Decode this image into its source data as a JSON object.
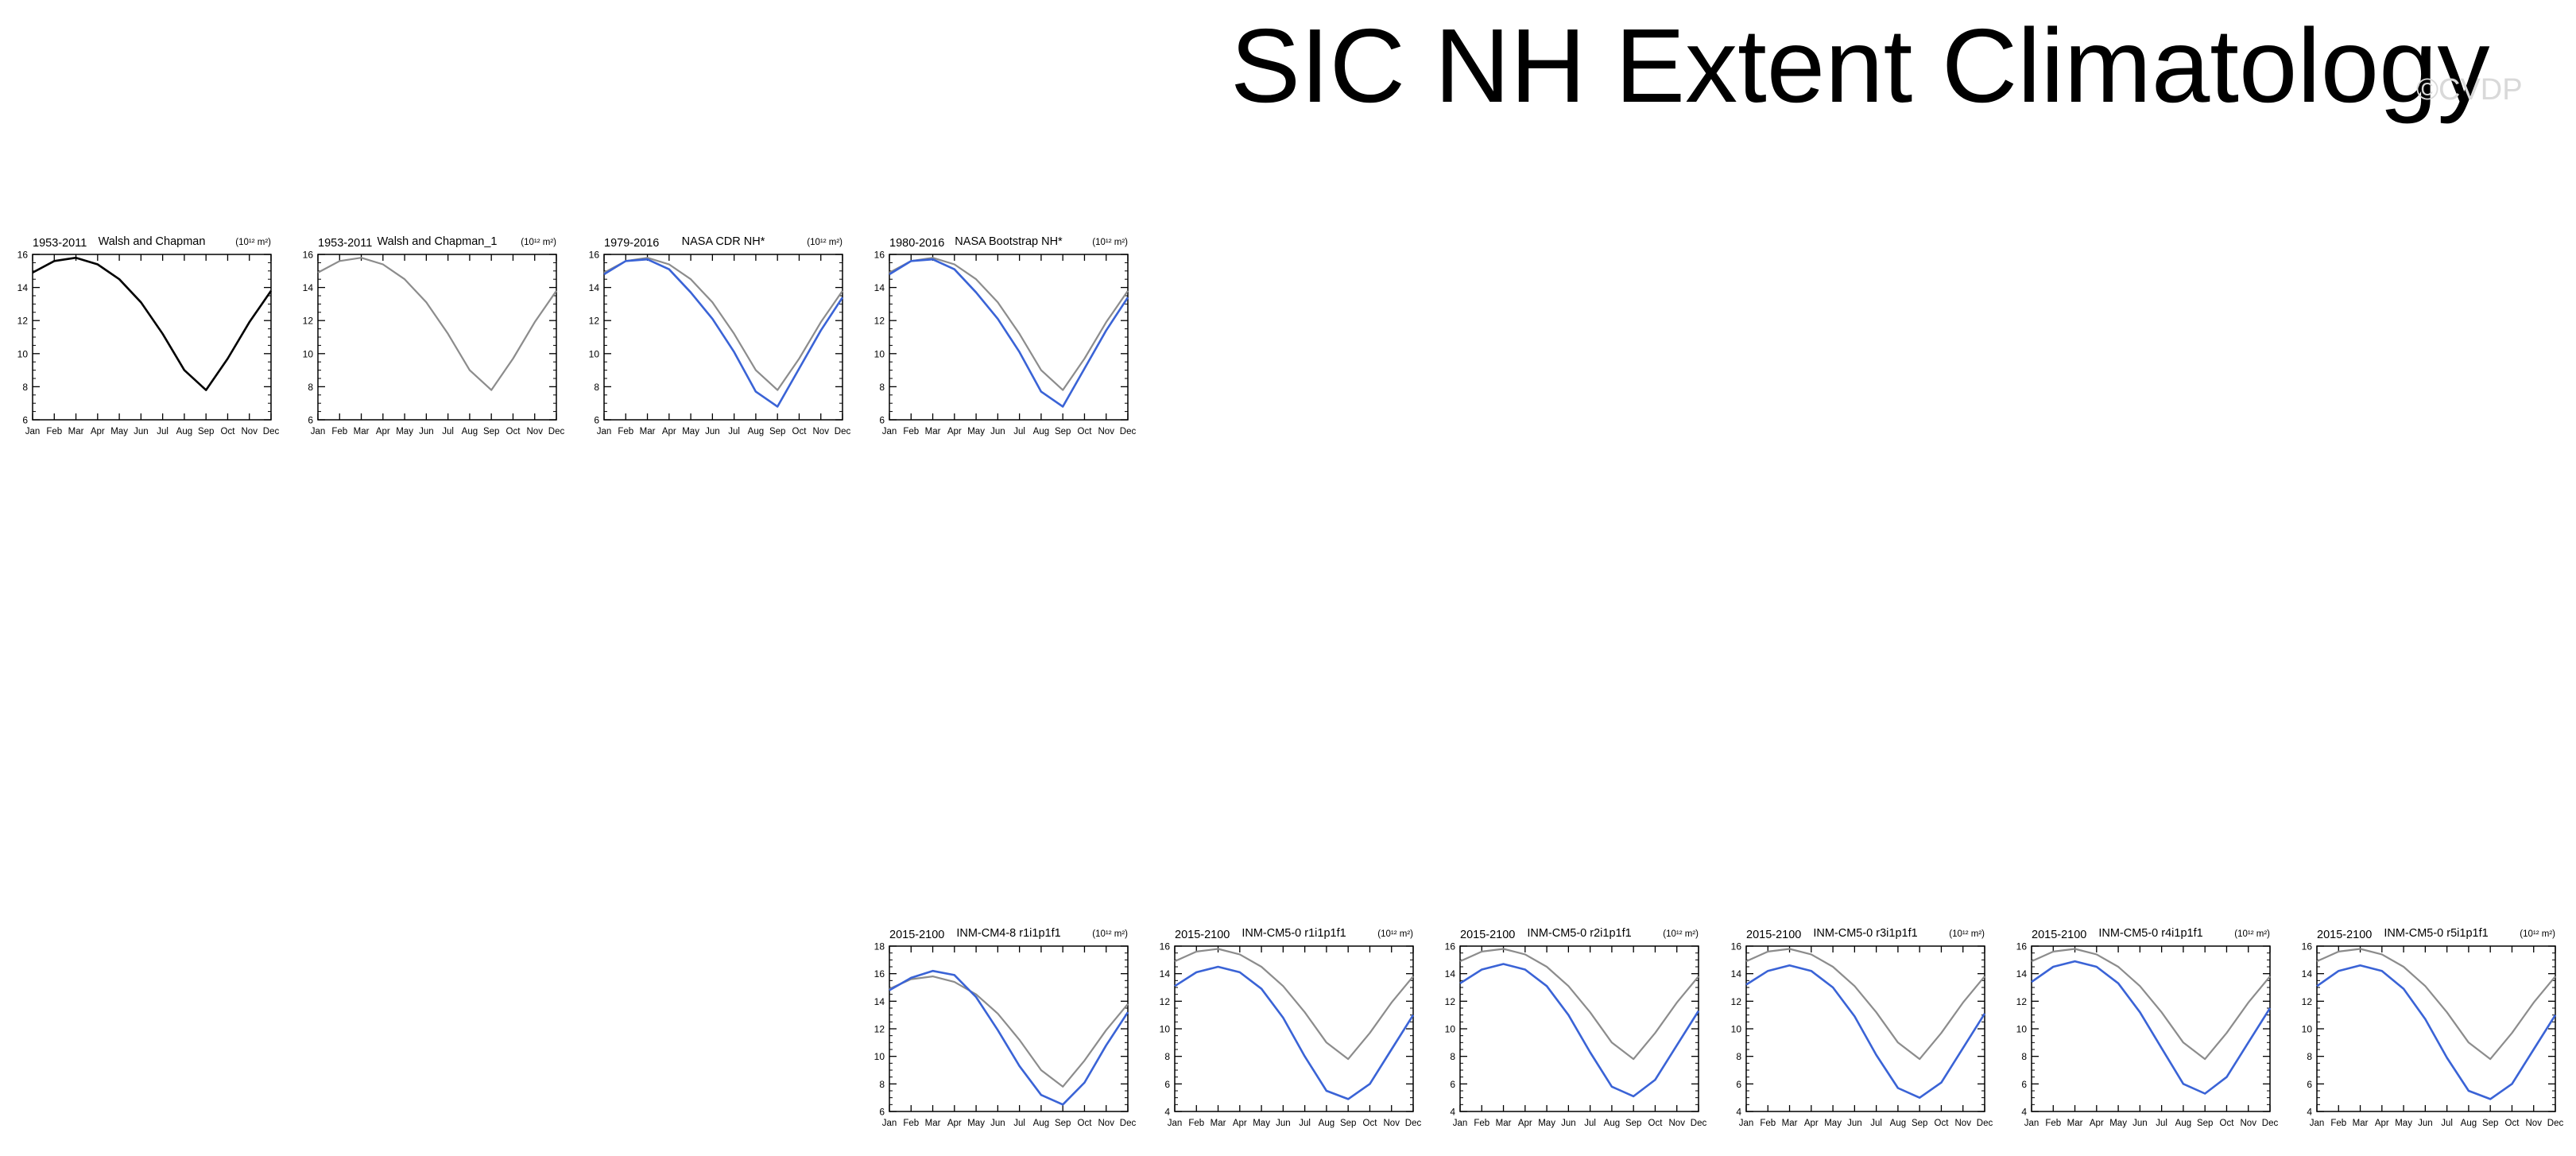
{
  "title": "SIC NH Extent Climatology",
  "watermark": "©CVDP",
  "colors": {
    "reference": "#8c8c8c",
    "observed_black": "#000000",
    "model": "#3a63d6"
  },
  "months": [
    "Jan",
    "Feb",
    "Mar",
    "Apr",
    "May",
    "Jun",
    "Jul",
    "Aug",
    "Sep",
    "Oct",
    "Nov",
    "Dec"
  ],
  "chart_data": [
    {
      "type": "line",
      "left_label": "1953-2011",
      "center_label": "Walsh and Chapman",
      "units_label": "(10¹² m²)",
      "categories": [
        "Jan",
        "Feb",
        "Mar",
        "Apr",
        "May",
        "Jun",
        "Jul",
        "Aug",
        "Sep",
        "Oct",
        "Nov",
        "Dec"
      ],
      "ylim": [
        6,
        16
      ],
      "yticks": [
        6,
        8,
        10,
        12,
        14,
        16
      ],
      "series": [
        {
          "role": "main",
          "color": "#000000",
          "values": [
            14.9,
            15.6,
            15.8,
            15.4,
            14.5,
            13.1,
            11.2,
            9.0,
            7.8,
            9.7,
            11.9,
            13.8
          ]
        }
      ]
    },
    {
      "type": "line",
      "left_label": "1953-2011",
      "center_label": "Walsh and Chapman_1",
      "units_label": "(10¹² m²)",
      "categories": [
        "Jan",
        "Feb",
        "Mar",
        "Apr",
        "May",
        "Jun",
        "Jul",
        "Aug",
        "Sep",
        "Oct",
        "Nov",
        "Dec"
      ],
      "ylim": [
        6,
        16
      ],
      "yticks": [
        6,
        8,
        10,
        12,
        14,
        16
      ],
      "series": [
        {
          "role": "reference",
          "color": "#8c8c8c",
          "values": [
            14.9,
            15.6,
            15.8,
            15.4,
            14.5,
            13.1,
            11.2,
            9.0,
            7.8,
            9.7,
            11.9,
            13.8
          ]
        }
      ]
    },
    {
      "type": "line",
      "left_label": "1979-2016",
      "center_label": "NASA CDR NH*",
      "units_label": "(10¹² m²)",
      "categories": [
        "Jan",
        "Feb",
        "Mar",
        "Apr",
        "May",
        "Jun",
        "Jul",
        "Aug",
        "Sep",
        "Oct",
        "Nov",
        "Dec"
      ],
      "ylim": [
        6,
        16
      ],
      "yticks": [
        6,
        8,
        10,
        12,
        14,
        16
      ],
      "series": [
        {
          "role": "reference",
          "color": "#8c8c8c",
          "values": [
            14.9,
            15.6,
            15.8,
            15.4,
            14.5,
            13.1,
            11.2,
            9.0,
            7.8,
            9.7,
            11.9,
            13.8
          ]
        },
        {
          "role": "main",
          "color": "#3a63d6",
          "values": [
            14.8,
            15.6,
            15.7,
            15.1,
            13.7,
            12.1,
            10.1,
            7.7,
            6.8,
            9.1,
            11.4,
            13.4
          ]
        }
      ]
    },
    {
      "type": "line",
      "left_label": "1980-2016",
      "center_label": "NASA Bootstrap NH*",
      "units_label": "(10¹² m²)",
      "categories": [
        "Jan",
        "Feb",
        "Mar",
        "Apr",
        "May",
        "Jun",
        "Jul",
        "Aug",
        "Sep",
        "Oct",
        "Nov",
        "Dec"
      ],
      "ylim": [
        6,
        16
      ],
      "yticks": [
        6,
        8,
        10,
        12,
        14,
        16
      ],
      "series": [
        {
          "role": "reference",
          "color": "#8c8c8c",
          "values": [
            14.9,
            15.6,
            15.8,
            15.4,
            14.5,
            13.1,
            11.2,
            9.0,
            7.8,
            9.7,
            11.9,
            13.8
          ]
        },
        {
          "role": "main",
          "color": "#3a63d6",
          "values": [
            14.8,
            15.6,
            15.7,
            15.1,
            13.7,
            12.1,
            10.1,
            7.7,
            6.8,
            9.1,
            11.4,
            13.4
          ]
        }
      ]
    },
    {
      "type": "line",
      "left_label": "2015-2100",
      "center_label": "INM-CM4-8 r1i1p1f1",
      "units_label": "(10¹² m²)",
      "categories": [
        "Jan",
        "Feb",
        "Mar",
        "Apr",
        "May",
        "Jun",
        "Jul",
        "Aug",
        "Sep",
        "Oct",
        "Nov",
        "Dec"
      ],
      "ylim": [
        6,
        18
      ],
      "yticks": [
        6,
        8,
        10,
        12,
        14,
        16,
        18
      ],
      "series": [
        {
          "role": "reference",
          "color": "#8c8c8c",
          "values": [
            14.9,
            15.6,
            15.8,
            15.4,
            14.5,
            13.1,
            11.2,
            9.0,
            7.8,
            9.7,
            11.9,
            13.8
          ]
        },
        {
          "role": "main",
          "color": "#3a63d6",
          "values": [
            14.8,
            15.7,
            16.2,
            15.9,
            14.3,
            11.9,
            9.3,
            7.2,
            6.5,
            8.1,
            10.8,
            13.2
          ]
        }
      ]
    },
    {
      "type": "line",
      "left_label": "2015-2100",
      "center_label": "INM-CM5-0 r1i1p1f1",
      "units_label": "(10¹² m²)",
      "categories": [
        "Jan",
        "Feb",
        "Mar",
        "Apr",
        "May",
        "Jun",
        "Jul",
        "Aug",
        "Sep",
        "Oct",
        "Nov",
        "Dec"
      ],
      "ylim": [
        4,
        16
      ],
      "yticks": [
        4,
        6,
        8,
        10,
        12,
        14,
        16
      ],
      "series": [
        {
          "role": "reference",
          "color": "#8c8c8c",
          "values": [
            14.9,
            15.6,
            15.8,
            15.4,
            14.5,
            13.1,
            11.2,
            9.0,
            7.8,
            9.7,
            11.9,
            13.8
          ]
        },
        {
          "role": "main",
          "color": "#3a63d6",
          "values": [
            13.1,
            14.1,
            14.5,
            14.1,
            12.9,
            10.8,
            8.0,
            5.5,
            4.9,
            6.0,
            8.5,
            11.0
          ]
        }
      ]
    },
    {
      "type": "line",
      "left_label": "2015-2100",
      "center_label": "INM-CM5-0 r2i1p1f1",
      "units_label": "(10¹² m²)",
      "categories": [
        "Jan",
        "Feb",
        "Mar",
        "Apr",
        "May",
        "Jun",
        "Jul",
        "Aug",
        "Sep",
        "Oct",
        "Nov",
        "Dec"
      ],
      "ylim": [
        4,
        16
      ],
      "yticks": [
        4,
        6,
        8,
        10,
        12,
        14,
        16
      ],
      "series": [
        {
          "role": "reference",
          "color": "#8c8c8c",
          "values": [
            14.9,
            15.6,
            15.8,
            15.4,
            14.5,
            13.1,
            11.2,
            9.0,
            7.8,
            9.7,
            11.9,
            13.8
          ]
        },
        {
          "role": "main",
          "color": "#3a63d6",
          "values": [
            13.3,
            14.3,
            14.7,
            14.3,
            13.1,
            11.0,
            8.3,
            5.8,
            5.1,
            6.3,
            8.8,
            11.3
          ]
        }
      ]
    },
    {
      "type": "line",
      "left_label": "2015-2100",
      "center_label": "INM-CM5-0 r3i1p1f1",
      "units_label": "(10¹² m²)",
      "categories": [
        "Jan",
        "Feb",
        "Mar",
        "Apr",
        "May",
        "Jun",
        "Jul",
        "Aug",
        "Sep",
        "Oct",
        "Nov",
        "Dec"
      ],
      "ylim": [
        4,
        16
      ],
      "yticks": [
        4,
        6,
        8,
        10,
        12,
        14,
        16
      ],
      "series": [
        {
          "role": "reference",
          "color": "#8c8c8c",
          "values": [
            14.9,
            15.6,
            15.8,
            15.4,
            14.5,
            13.1,
            11.2,
            9.0,
            7.8,
            9.7,
            11.9,
            13.8
          ]
        },
        {
          "role": "main",
          "color": "#3a63d6",
          "values": [
            13.2,
            14.2,
            14.6,
            14.2,
            13.0,
            10.9,
            8.1,
            5.7,
            5.0,
            6.1,
            8.6,
            11.1
          ]
        }
      ]
    },
    {
      "type": "line",
      "left_label": "2015-2100",
      "center_label": "INM-CM5-0 r4i1p1f1",
      "units_label": "(10¹² m²)",
      "categories": [
        "Jan",
        "Feb",
        "Mar",
        "Apr",
        "May",
        "Jun",
        "Jul",
        "Aug",
        "Sep",
        "Oct",
        "Nov",
        "Dec"
      ],
      "ylim": [
        4,
        16
      ],
      "yticks": [
        4,
        6,
        8,
        10,
        12,
        14,
        16
      ],
      "series": [
        {
          "role": "reference",
          "color": "#8c8c8c",
          "values": [
            14.9,
            15.6,
            15.8,
            15.4,
            14.5,
            13.1,
            11.2,
            9.0,
            7.8,
            9.7,
            11.9,
            13.8
          ]
        },
        {
          "role": "main",
          "color": "#3a63d6",
          "values": [
            13.4,
            14.5,
            14.9,
            14.5,
            13.3,
            11.2,
            8.6,
            6.0,
            5.3,
            6.5,
            9.0,
            11.5
          ]
        }
      ]
    },
    {
      "type": "line",
      "left_label": "2015-2100",
      "center_label": "INM-CM5-0 r5i1p1f1",
      "units_label": "(10¹² m²)",
      "categories": [
        "Jan",
        "Feb",
        "Mar",
        "Apr",
        "May",
        "Jun",
        "Jul",
        "Aug",
        "Sep",
        "Oct",
        "Nov",
        "Dec"
      ],
      "ylim": [
        4,
        16
      ],
      "yticks": [
        4,
        6,
        8,
        10,
        12,
        14,
        16
      ],
      "series": [
        {
          "role": "reference",
          "color": "#8c8c8c",
          "values": [
            14.9,
            15.6,
            15.8,
            15.4,
            14.5,
            13.1,
            11.2,
            9.0,
            7.8,
            9.7,
            11.9,
            13.8
          ]
        },
        {
          "role": "main",
          "color": "#3a63d6",
          "values": [
            13.1,
            14.2,
            14.6,
            14.2,
            12.9,
            10.7,
            7.9,
            5.5,
            4.9,
            6.0,
            8.5,
            11.0
          ]
        }
      ]
    }
  ]
}
